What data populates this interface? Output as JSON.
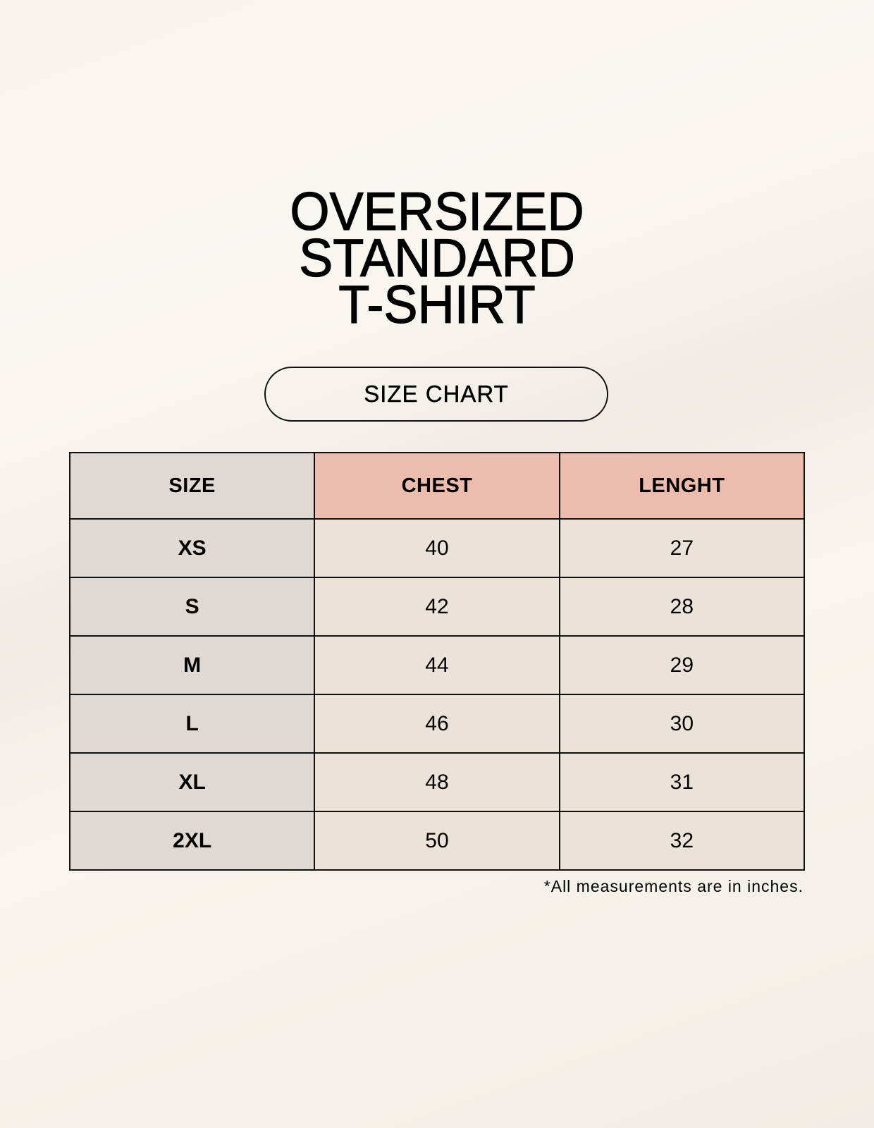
{
  "title": [
    "OVERSIZED",
    "STANDARD",
    "T-SHIRT"
  ],
  "badge": "SIZE CHART",
  "table": {
    "headers": [
      "SIZE",
      "CHEST",
      "LENGHT"
    ],
    "rows": [
      [
        "XS",
        "40",
        "27"
      ],
      [
        "S",
        "42",
        "28"
      ],
      [
        "M",
        "44",
        "29"
      ],
      [
        "L",
        "46",
        "30"
      ],
      [
        "XL",
        "48",
        "31"
      ],
      [
        "2XL",
        "50",
        "32"
      ]
    ]
  },
  "footnote": "*All measurements are in inches.",
  "colors": {
    "background": "#f8f5ef",
    "size_column": "#e0d8d3",
    "header_accent": "#ecbcae",
    "cell": "#ebe3d9"
  }
}
